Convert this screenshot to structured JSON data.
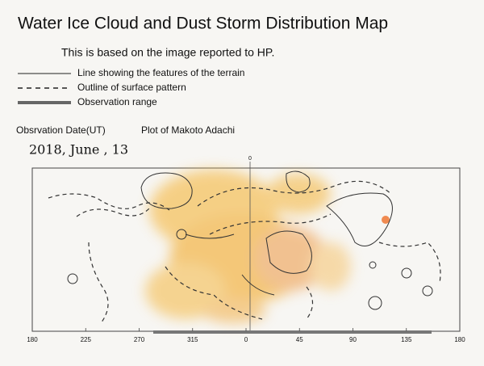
{
  "header": {
    "title": "Water Ice Cloud and Dust Storm Distribution Map",
    "subtitle": "This is based on the image reported to HP."
  },
  "legend": [
    {
      "label": "Line showing the features of the terrain"
    },
    {
      "label": "Outline of surface pattern"
    },
    {
      "label": "Observation range"
    }
  ],
  "observation": {
    "date_label": "Obsrvation Date(UT)",
    "plotter": "Plot of Makoto Adachi",
    "date": "2018, June , 13"
  },
  "map": {
    "top_label": 0,
    "longitude_labels": [
      180,
      225,
      270,
      315,
      0,
      45,
      90,
      135,
      180
    ]
  }
}
